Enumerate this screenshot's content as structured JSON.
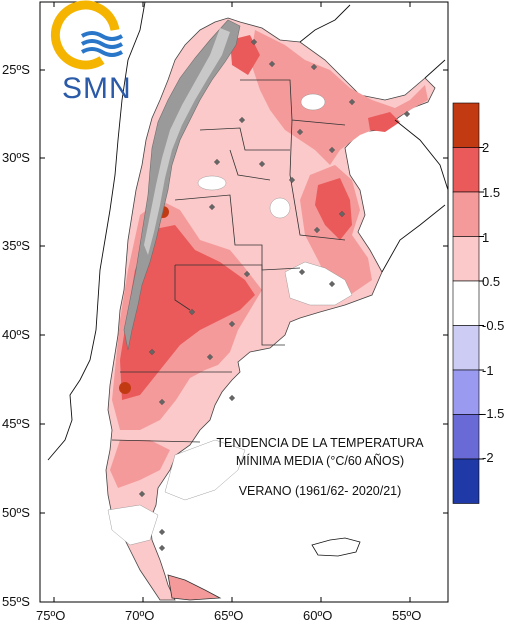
{
  "logo": {
    "text": "SMN",
    "colors": {
      "sun": "#f4b400",
      "waves": "#2a77c9",
      "text": "#2a5aa8"
    }
  },
  "title": {
    "line1": "TENDENCIA DE LA TEMPERATURA",
    "line2": "MÍNIMA MEDIA (°C/60 AÑOS)",
    "line3": "VERANO (1961/62- 2020/21)"
  },
  "axes": {
    "y_ticks": [
      "25ºS",
      "30ºS",
      "35ºS",
      "40ºS",
      "45ºS",
      "50ºS",
      "55ºS"
    ],
    "x_ticks": [
      "75ºO",
      "70ºO",
      "65ºO",
      "60ºO",
      "55ºO"
    ]
  },
  "legend": {
    "labels": [
      "2",
      "1.5",
      "1",
      "0.5",
      "-0.5",
      "-1",
      "-1.5",
      "-2"
    ],
    "colors": [
      "#c23a12",
      "#ea5a5a",
      "#f49a9a",
      "#fbc9c9",
      "#ffffff",
      "#ccccf5",
      "#9a9af0",
      "#6a6ad6",
      "#1f3aa6"
    ]
  }
}
